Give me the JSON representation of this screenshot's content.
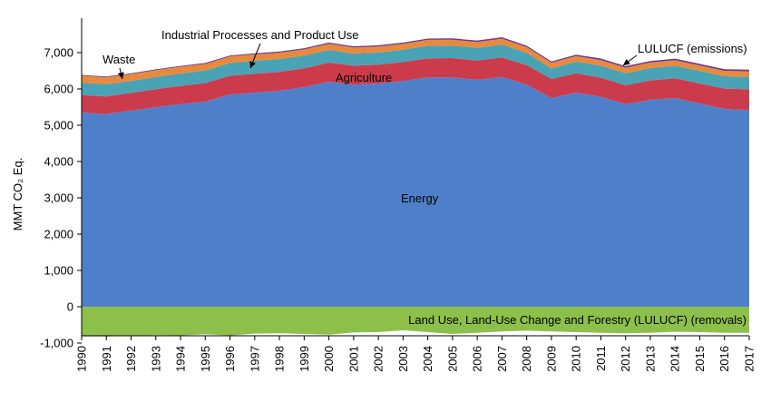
{
  "chart_data": {
    "type": "area",
    "ylabel": "MMT CO₂ Eq.",
    "ylim": [
      -1000,
      7600
    ],
    "yticks": [
      -1000,
      0,
      1000,
      2000,
      3000,
      4000,
      5000,
      6000,
      7000
    ],
    "ytick_labels": [
      "-1,000",
      "0",
      "1,000",
      "2,000",
      "3,000",
      "4,000",
      "5,000",
      "6,000",
      "7,000"
    ],
    "grid": false,
    "x": [
      "1990",
      "1991",
      "1992",
      "1993",
      "1994",
      "1995",
      "1996",
      "1997",
      "1998",
      "1999",
      "2000",
      "2001",
      "2002",
      "2003",
      "2004",
      "2005",
      "2006",
      "2007",
      "2008",
      "2009",
      "2010",
      "2011",
      "2012",
      "2013",
      "2014",
      "2015",
      "2016",
      "2017"
    ],
    "series": [
      {
        "name": "Energy",
        "color": "#4f7fc8",
        "values": [
          5350,
          5310,
          5400,
          5500,
          5580,
          5650,
          5850,
          5900,
          5950,
          6050,
          6200,
          6120,
          6150,
          6220,
          6320,
          6320,
          6250,
          6330,
          6120,
          5750,
          5900,
          5780,
          5580,
          5700,
          5750,
          5600,
          5450,
          5420
        ]
      },
      {
        "name": "Agriculture",
        "color": "#cc3b4b",
        "values": [
          480,
          485,
          490,
          495,
          505,
          510,
          515,
          520,
          520,
          520,
          525,
          520,
          520,
          520,
          525,
          530,
          535,
          540,
          535,
          525,
          530,
          530,
          520,
          535,
          545,
          550,
          560,
          570
        ]
      },
      {
        "name": "Industrial Processes and Product Use",
        "color": "#4aa2b5",
        "values": [
          340,
          335,
          330,
          335,
          340,
          345,
          350,
          355,
          355,
          350,
          350,
          335,
          335,
          340,
          345,
          345,
          350,
          355,
          340,
          290,
          320,
          330,
          330,
          340,
          345,
          345,
          340,
          345
        ]
      },
      {
        "name": "Waste",
        "color": "#e8893c",
        "values": [
          195,
          193,
          190,
          188,
          186,
          184,
          181,
          178,
          175,
          172,
          170,
          167,
          165,
          163,
          162,
          160,
          159,
          158,
          157,
          156,
          155,
          154,
          153,
          152,
          152,
          151,
          150,
          150
        ]
      },
      {
        "name": "LULUCF (emissions)",
        "color": "#6a3b93",
        "values": [
          20,
          22,
          22,
          24,
          24,
          26,
          26,
          28,
          30,
          30,
          32,
          32,
          32,
          34,
          36,
          38,
          40,
          42,
          40,
          36,
          40,
          42,
          44,
          42,
          42,
          44,
          44,
          46
        ]
      },
      {
        "name": "Land Use, Land-Use Change and Forestry (LULUCF) (removals)",
        "color": "#8dc04b",
        "values": [
          -815,
          -820,
          -800,
          -780,
          -790,
          -760,
          -790,
          -740,
          -730,
          -750,
          -770,
          -710,
          -700,
          -650,
          -700,
          -750,
          -720,
          -680,
          -660,
          -680,
          -700,
          -720,
          -730,
          -720,
          -690,
          -700,
          -720,
          -720
        ]
      }
    ],
    "annotations": [
      {
        "text": "Waste",
        "series": "Waste",
        "arrow": true
      },
      {
        "text": "Industrial Processes and Product Use",
        "series": "Industrial Processes and Product Use",
        "arrow": true
      },
      {
        "text": "LULUCF (emissions)",
        "series": "LULUCF (emissions)",
        "arrow": true
      },
      {
        "text": "Agriculture",
        "series": "Agriculture",
        "arrow": false
      },
      {
        "text": "Energy",
        "series": "Energy",
        "arrow": false
      },
      {
        "text": "Land Use, Land-Use Change and Forestry (LULUCF) (removals)",
        "series": "Land Use, Land-Use Change and Forestry (LULUCF) (removals)",
        "arrow": false
      }
    ]
  }
}
